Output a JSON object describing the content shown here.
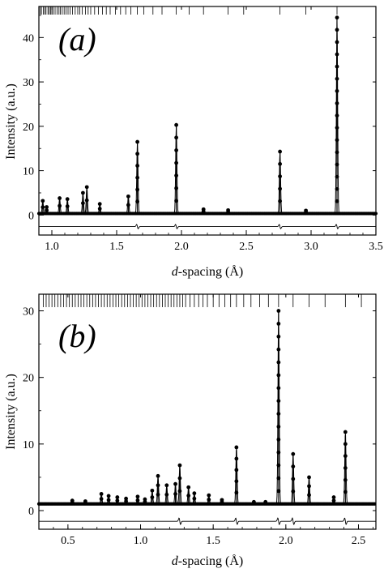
{
  "chart_data": [
    {
      "type": "scatter",
      "panel_label": "(a)",
      "xlabel_italic": "d",
      "xlabel_rest": "-spacing (Å)",
      "ylabel": "Intensity (a.u.)",
      "xlim": [
        0.9,
        3.5
      ],
      "ylim": [
        -4.5,
        47
      ],
      "xticks": [
        1.0,
        1.5,
        2.0,
        2.5,
        3.0,
        3.5
      ],
      "xtick_labels": [
        "1.0",
        "1.5",
        "2.0",
        "2.5",
        "3.0",
        "3.5"
      ],
      "yticks": [
        0,
        10,
        20,
        30,
        40
      ],
      "ytick_labels": [
        "0",
        "10",
        "20",
        "30",
        "40"
      ],
      "grid": false,
      "baseline": 0.35,
      "difference_offset": -2.6,
      "peaks": [
        {
          "d": 0.93,
          "height": 3.2
        },
        {
          "d": 0.96,
          "height": 1.8
        },
        {
          "d": 1.06,
          "height": 3.8
        },
        {
          "d": 1.12,
          "height": 3.6
        },
        {
          "d": 1.24,
          "height": 5.0
        },
        {
          "d": 1.27,
          "height": 6.3
        },
        {
          "d": 1.37,
          "height": 2.5
        },
        {
          "d": 1.59,
          "height": 4.2
        },
        {
          "d": 1.66,
          "height": 16.5
        },
        {
          "d": 1.96,
          "height": 20.3
        },
        {
          "d": 2.17,
          "height": 1.3
        },
        {
          "d": 2.36,
          "height": 1.1
        },
        {
          "d": 2.76,
          "height": 14.3
        },
        {
          "d": 2.96,
          "height": 1.0
        },
        {
          "d": 3.2,
          "height": 44.5
        }
      ],
      "reflection_ticks_d": [
        0.91,
        0.92,
        0.935,
        0.945,
        0.955,
        0.97,
        0.98,
        0.99,
        1.0,
        1.01,
        1.025,
        1.04,
        1.055,
        1.065,
        1.08,
        1.095,
        1.11,
        1.125,
        1.14,
        1.16,
        1.18,
        1.2,
        1.215,
        1.235,
        1.26,
        1.28,
        1.3,
        1.33,
        1.36,
        1.39,
        1.42,
        1.45,
        1.49,
        1.53,
        1.57,
        1.61,
        1.66,
        1.71,
        1.78,
        1.85,
        1.96,
        2.06,
        2.17,
        2.36,
        2.48,
        2.76,
        2.96,
        3.2
      ]
    },
    {
      "type": "scatter",
      "panel_label": "(b)",
      "xlabel_italic": "d",
      "xlabel_rest": "-spacing (Å)",
      "ylabel": "Intensity (a.u.)",
      "xlim": [
        0.3,
        2.62
      ],
      "ylim": [
        -2.8,
        32.5
      ],
      "xticks": [
        0.5,
        1.0,
        1.5,
        2.0,
        2.5
      ],
      "xtick_labels": [
        "0.5",
        "1.0",
        "1.5",
        "2.0",
        "2.5"
      ],
      "yticks": [
        0,
        10,
        20,
        30
      ],
      "ytick_labels": [
        "0",
        "10",
        "20",
        "30"
      ],
      "grid": false,
      "baseline": 1.0,
      "difference_offset": -1.6,
      "peaks": [
        {
          "d": 0.53,
          "height": 1.5
        },
        {
          "d": 0.62,
          "height": 1.4
        },
        {
          "d": 0.73,
          "height": 2.5
        },
        {
          "d": 0.78,
          "height": 2.2
        },
        {
          "d": 0.84,
          "height": 2.0
        },
        {
          "d": 0.9,
          "height": 1.8
        },
        {
          "d": 0.98,
          "height": 2.1
        },
        {
          "d": 1.03,
          "height": 1.7
        },
        {
          "d": 1.08,
          "height": 3.0
        },
        {
          "d": 1.12,
          "height": 5.2
        },
        {
          "d": 1.18,
          "height": 3.8
        },
        {
          "d": 1.24,
          "height": 4.0
        },
        {
          "d": 1.27,
          "height": 6.8
        },
        {
          "d": 1.33,
          "height": 3.5
        },
        {
          "d": 1.37,
          "height": 2.6
        },
        {
          "d": 1.47,
          "height": 2.3
        },
        {
          "d": 1.56,
          "height": 1.6
        },
        {
          "d": 1.66,
          "height": 9.5
        },
        {
          "d": 1.78,
          "height": 1.3
        },
        {
          "d": 1.86,
          "height": 1.3
        },
        {
          "d": 1.95,
          "height": 30.0
        },
        {
          "d": 2.05,
          "height": 8.5
        },
        {
          "d": 2.16,
          "height": 5.0
        },
        {
          "d": 2.33,
          "height": 2.0
        },
        {
          "d": 2.41,
          "height": 11.8
        }
      ],
      "reflection_ticks_d": [
        0.33,
        0.35,
        0.37,
        0.39,
        0.41,
        0.43,
        0.45,
        0.47,
        0.49,
        0.51,
        0.53,
        0.55,
        0.57,
        0.59,
        0.61,
        0.63,
        0.65,
        0.67,
        0.69,
        0.71,
        0.73,
        0.75,
        0.77,
        0.79,
        0.81,
        0.83,
        0.85,
        0.87,
        0.89,
        0.91,
        0.93,
        0.95,
        0.97,
        0.99,
        1.01,
        1.03,
        1.05,
        1.07,
        1.09,
        1.11,
        1.13,
        1.15,
        1.17,
        1.19,
        1.21,
        1.23,
        1.25,
        1.27,
        1.29,
        1.31,
        1.34,
        1.37,
        1.4,
        1.43,
        1.46,
        1.5,
        1.54,
        1.58,
        1.62,
        1.66,
        1.71,
        1.76,
        1.82,
        1.88,
        1.95,
        2.05,
        2.16,
        2.27,
        2.41,
        2.52
      ]
    }
  ]
}
